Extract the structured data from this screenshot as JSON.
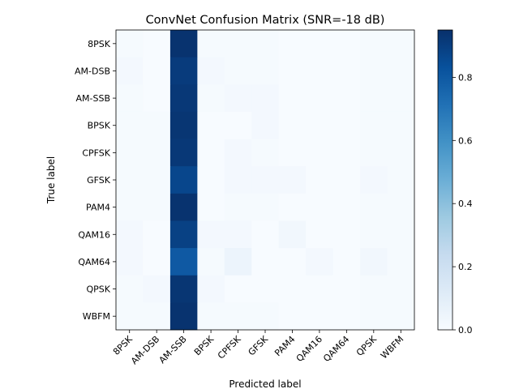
{
  "chart_data": {
    "type": "heatmap",
    "title": "ConvNet Confusion Matrix (SNR=-18 dB)",
    "xlabel": "Predicted label",
    "ylabel": "True label",
    "labels": [
      "8PSK",
      "AM-DSB",
      "AM-SSB",
      "BPSK",
      "CPFSK",
      "GFSK",
      "PAM4",
      "QAM16",
      "QAM64",
      "QPSK",
      "WBFM"
    ],
    "colorbar": {
      "min": 0.0,
      "max": 0.95,
      "ticks": [
        0.0,
        0.2,
        0.4,
        0.6,
        0.8
      ],
      "tick_labels": [
        "0.0",
        "0.2",
        "0.4",
        "0.6",
        "0.8"
      ],
      "colormap": "Blues"
    },
    "matrix": [
      [
        0.01,
        0.0,
        0.94,
        0.01,
        0.01,
        0.01,
        0.0,
        0.0,
        0.0,
        0.01,
        0.01
      ],
      [
        0.02,
        0.0,
        0.91,
        0.02,
        0.01,
        0.01,
        0.0,
        0.0,
        0.0,
        0.01,
        0.01
      ],
      [
        0.01,
        0.0,
        0.92,
        0.01,
        0.02,
        0.02,
        0.0,
        0.0,
        0.0,
        0.01,
        0.01
      ],
      [
        0.01,
        0.01,
        0.93,
        0.0,
        0.0,
        0.02,
        0.0,
        0.0,
        0.0,
        0.01,
        0.01
      ],
      [
        0.01,
        0.01,
        0.92,
        0.0,
        0.02,
        0.01,
        0.0,
        0.0,
        0.0,
        0.01,
        0.01
      ],
      [
        0.01,
        0.01,
        0.87,
        0.0,
        0.02,
        0.02,
        0.02,
        0.0,
        0.0,
        0.02,
        0.01
      ],
      [
        0.01,
        0.01,
        0.94,
        0.0,
        0.01,
        0.01,
        0.0,
        0.0,
        0.0,
        0.01,
        0.01
      ],
      [
        0.02,
        0.0,
        0.89,
        0.02,
        0.02,
        0.0,
        0.03,
        0.0,
        0.0,
        0.01,
        0.01
      ],
      [
        0.02,
        0.0,
        0.8,
        0.01,
        0.05,
        0.0,
        0.0,
        0.02,
        0.0,
        0.03,
        0.01
      ],
      [
        0.01,
        0.02,
        0.93,
        0.02,
        0.0,
        0.0,
        0.0,
        0.0,
        0.0,
        0.01,
        0.01
      ],
      [
        0.01,
        0.01,
        0.94,
        0.01,
        0.01,
        0.01,
        0.0,
        0.0,
        0.0,
        0.01,
        0.01
      ]
    ]
  }
}
